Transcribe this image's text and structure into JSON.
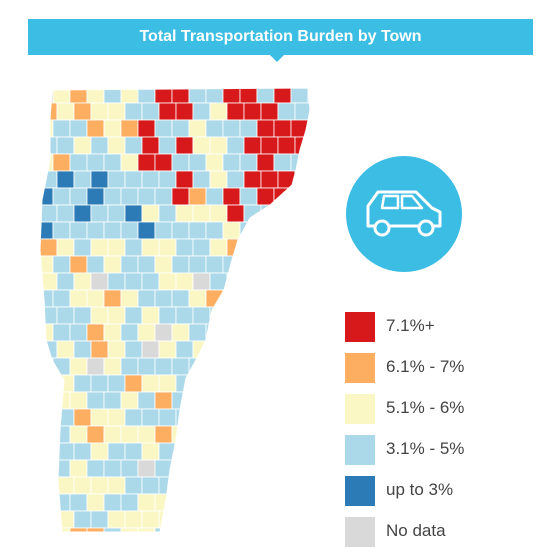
{
  "title": "Total Transportation Burden by Town",
  "icon": "car-icon",
  "colors": {
    "accent": "#3bbde4",
    "c1": "#d7191c",
    "c2": "#fdae61",
    "c3": "#fbf7c4",
    "c4": "#abd9e9",
    "c5": "#2c7bb6",
    "c6": "#d9d9d9"
  },
  "legend": [
    {
      "label": "7.1%+",
      "color": "#d7191c"
    },
    {
      "label": "6.1% - 7%",
      "color": "#fdae61"
    },
    {
      "label": "5.1% - 6%",
      "color": "#fbf7c4"
    },
    {
      "label": "3.1% - 5%",
      "color": "#abd9e9"
    },
    {
      "label": "up to 3%",
      "color": "#2c7bb6"
    },
    {
      "label": "No data",
      "color": "#d9d9d9"
    }
  ]
}
